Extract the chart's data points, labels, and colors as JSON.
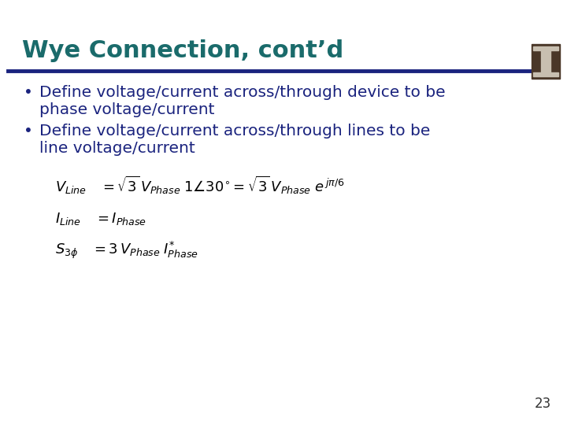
{
  "title": "Wye Connection, cont’d",
  "title_color": "#1a6b6b",
  "title_fontsize": 22,
  "bg_color": "#ffffff",
  "divider_color": "#1a237e",
  "bullet1_line1": "Define voltage/current across/through device to be",
  "bullet1_line2": "phase voltage/current",
  "bullet2_line1": "Define voltage/current across/through lines to be",
  "bullet2_line2": "line voltage/current",
  "bullet_color": "#1a237e",
  "bullet_fontsize": 14.5,
  "page_number": "23",
  "eq1": "$V_{Line} \\quad = \\sqrt{3}\\, V_{Phase}\\; 1\\angle 30^{\\circ} = \\sqrt{3}\\, V_{Phase}\\; e^{\\,j\\pi/6}$",
  "eq2": "$I_{Line} \\quad = I_{Phase}$",
  "eq3": "$S_{3\\phi} \\quad = 3\\, V_{Phase}\\; I^{*}_{Phase}$",
  "eq_color": "#000000",
  "eq_fontsize": 13,
  "logo_outer_color": "#4a3728",
  "logo_inner_color": "#c8bfb0",
  "page_color": "#333333",
  "page_fontsize": 12
}
